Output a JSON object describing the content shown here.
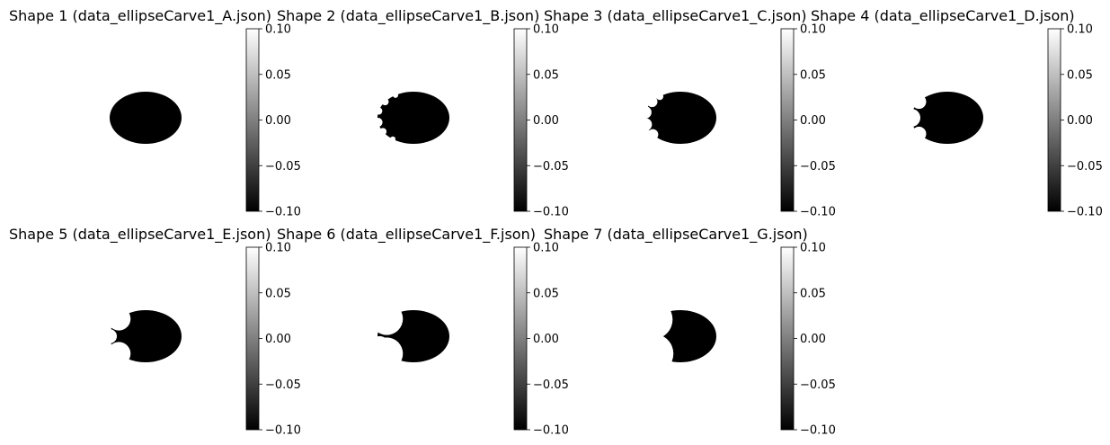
{
  "chart_data": [
    {
      "type": "heatmap",
      "title": "Shape 1 (data_ellipseCarve1_A.json)",
      "colorbar": {
        "ticks": [
          0.1,
          0.05,
          0.0,
          -0.05,
          -0.1
        ],
        "tick_labels": [
          "0.10",
          "0.05",
          "0.00",
          "−0.05",
          "−0.10"
        ],
        "range": [
          -0.1,
          0.1
        ],
        "colormap": "gray"
      },
      "shape": "ellipse",
      "carve_stage": 0
    },
    {
      "type": "heatmap",
      "title": "Shape 2 (data_ellipseCarve1_B.json)",
      "colorbar": {
        "ticks": [
          0.1,
          0.05,
          0.0,
          -0.05,
          -0.1
        ],
        "tick_labels": [
          "0.10",
          "0.05",
          "0.00",
          "−0.05",
          "−0.10"
        ],
        "range": [
          -0.1,
          0.1
        ],
        "colormap": "gray"
      },
      "shape": "ellipse",
      "carve_stage": 1
    },
    {
      "type": "heatmap",
      "title": "Shape 3 (data_ellipseCarve1_C.json)",
      "colorbar": {
        "ticks": [
          0.1,
          0.05,
          0.0,
          -0.05,
          -0.1
        ],
        "tick_labels": [
          "0.10",
          "0.05",
          "0.00",
          "−0.05",
          "−0.10"
        ],
        "range": [
          -0.1,
          0.1
        ],
        "colormap": "gray"
      },
      "shape": "ellipse",
      "carve_stage": 2
    },
    {
      "type": "heatmap",
      "title": "Shape 4 (data_ellipseCarve1_D.json)",
      "colorbar": {
        "ticks": [
          0.1,
          0.05,
          0.0,
          -0.05,
          -0.1
        ],
        "tick_labels": [
          "0.10",
          "0.05",
          "0.00",
          "−0.05",
          "−0.10"
        ],
        "range": [
          -0.1,
          0.1
        ],
        "colormap": "gray"
      },
      "shape": "ellipse",
      "carve_stage": 3
    },
    {
      "type": "heatmap",
      "title": "Shape 5 (data_ellipseCarve1_E.json)",
      "colorbar": {
        "ticks": [
          0.1,
          0.05,
          0.0,
          -0.05,
          -0.1
        ],
        "tick_labels": [
          "0.10",
          "0.05",
          "0.00",
          "−0.05",
          "−0.10"
        ],
        "range": [
          -0.1,
          0.1
        ],
        "colormap": "gray"
      },
      "shape": "ellipse",
      "carve_stage": 4
    },
    {
      "type": "heatmap",
      "title": "Shape 6 (data_ellipseCarve1_F.json)",
      "colorbar": {
        "ticks": [
          0.1,
          0.05,
          0.0,
          -0.05,
          -0.1
        ],
        "tick_labels": [
          "0.10",
          "0.05",
          "0.00",
          "−0.05",
          "−0.10"
        ],
        "range": [
          -0.1,
          0.1
        ],
        "colormap": "gray"
      },
      "shape": "ellipse",
      "carve_stage": 5
    },
    {
      "type": "heatmap",
      "title": "Shape 7 (data_ellipseCarve1_G.json)",
      "colorbar": {
        "ticks": [
          0.1,
          0.05,
          0.0,
          -0.05,
          -0.1
        ],
        "tick_labels": [
          "0.10",
          "0.05",
          "0.00",
          "−0.05",
          "−0.10"
        ],
        "range": [
          -0.1,
          0.1
        ],
        "colormap": "gray"
      },
      "shape": "ellipse",
      "carve_stage": 6
    }
  ],
  "colors": {
    "shape_fill": "#000000",
    "background": "#ffffff",
    "tick_color": "#000000"
  }
}
